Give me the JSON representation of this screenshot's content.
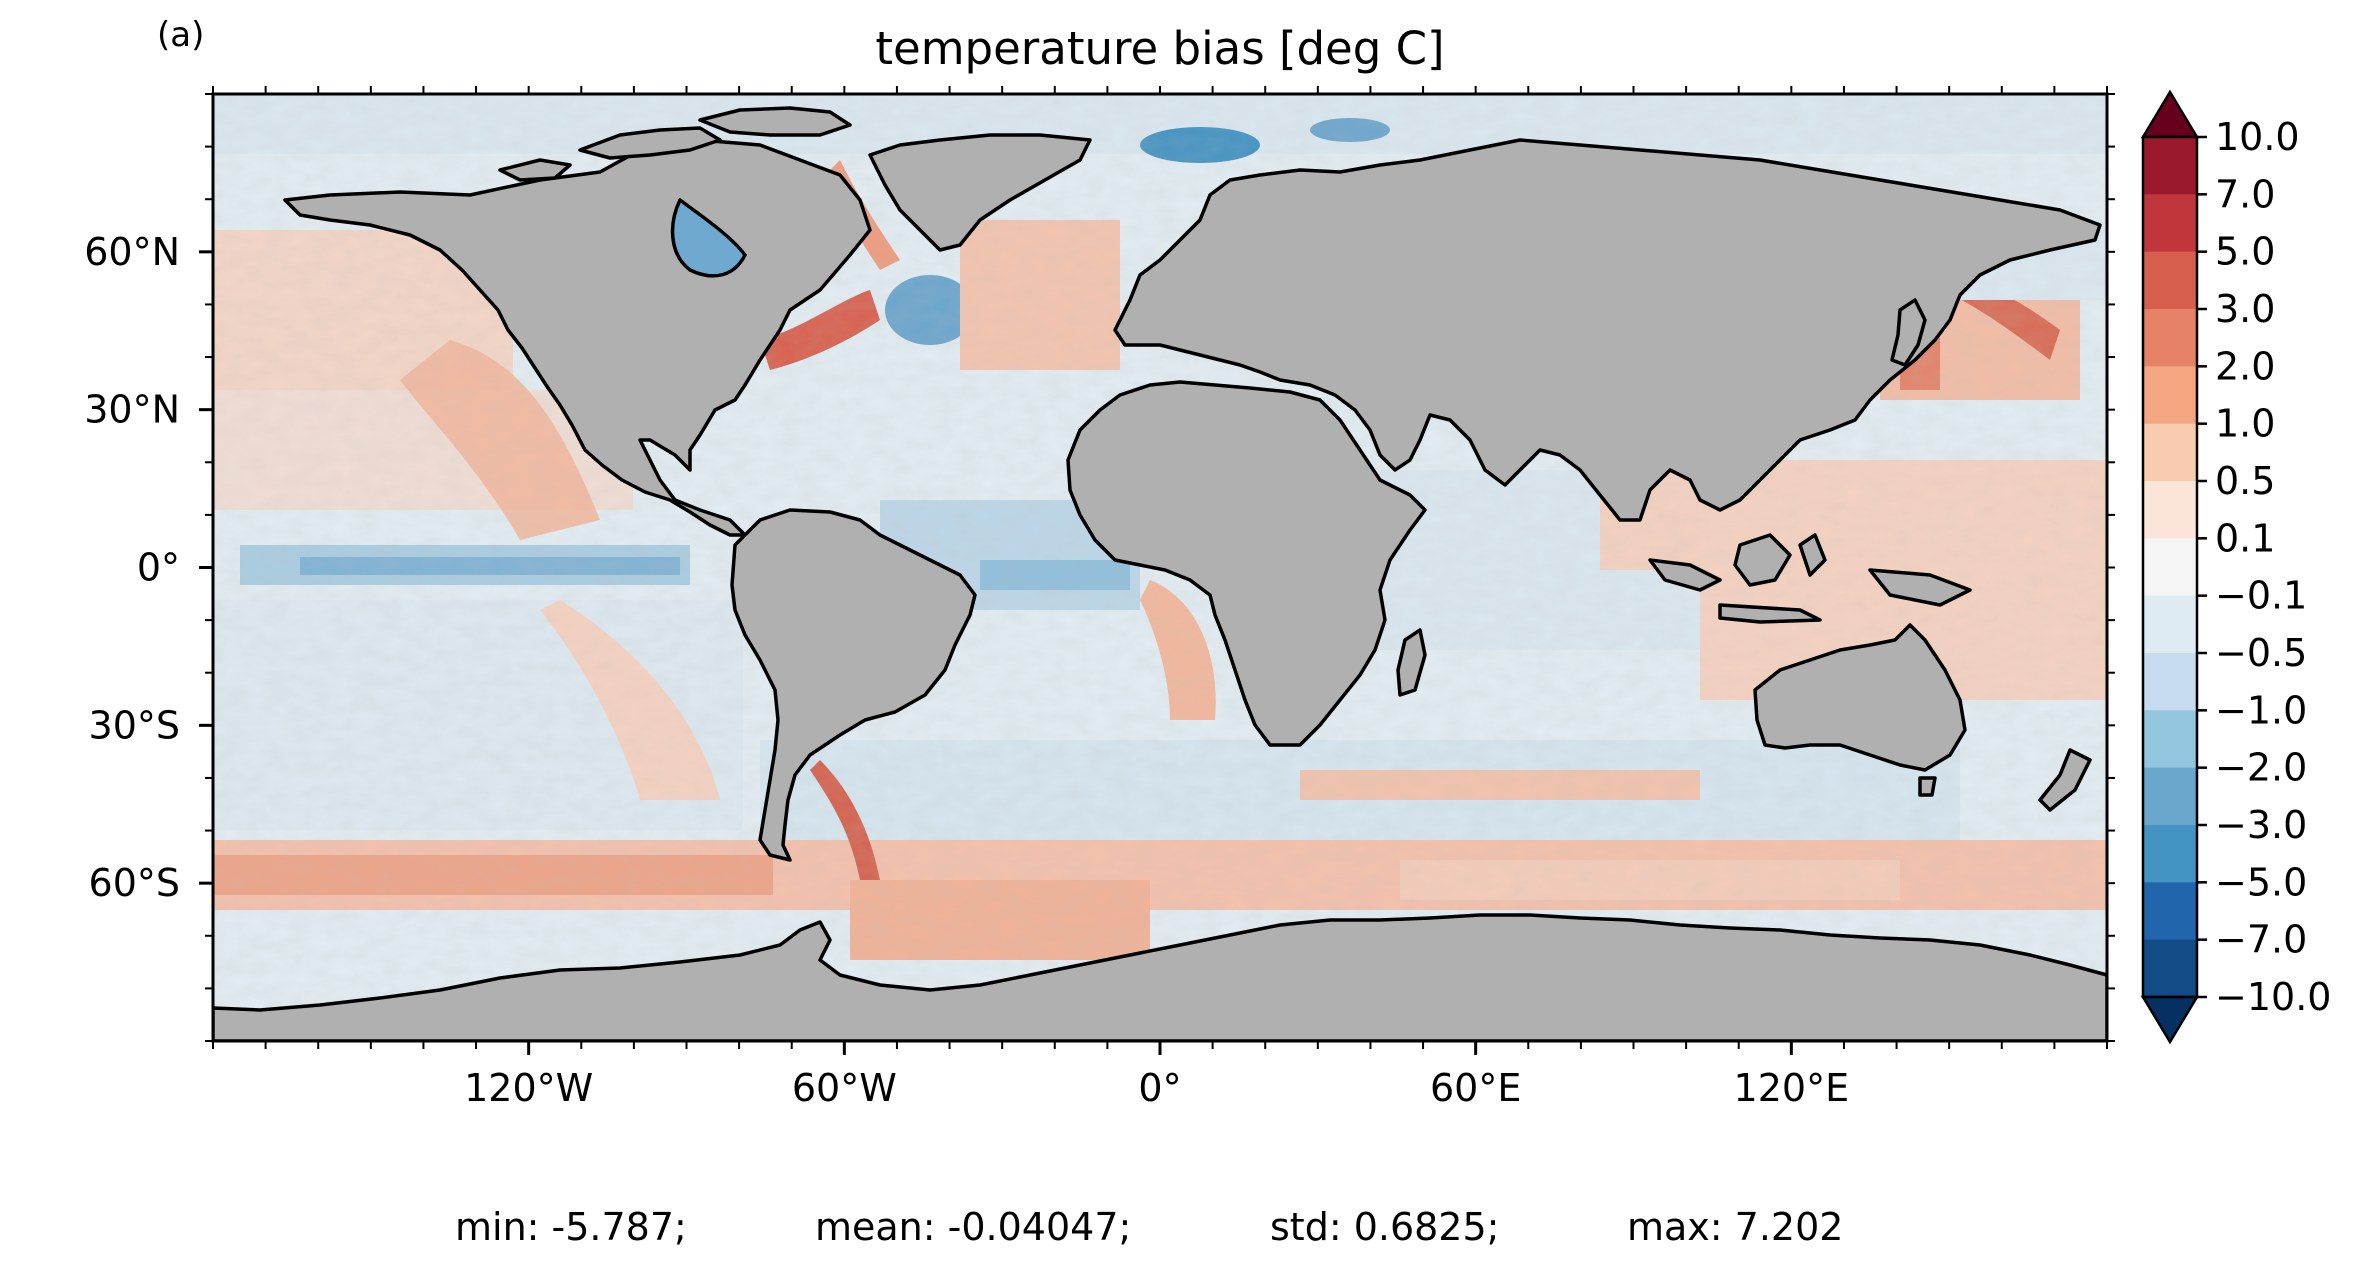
{
  "panel_label": "(a)",
  "title": "temperature bias [deg C]",
  "map": {
    "projection": "PlateCarree",
    "lon_range": [
      -180,
      180
    ],
    "lat_range": [
      -90,
      90
    ],
    "land_color": "#b0b0b0",
    "coastline_color": "#000000",
    "ocean_colormap": "RdBu_r",
    "x_ticks": [
      {
        "lon": -120,
        "label": "120°W"
      },
      {
        "lon": -60,
        "label": "60°W"
      },
      {
        "lon": 0,
        "label": "0°"
      },
      {
        "lon": 60,
        "label": "60°E"
      },
      {
        "lon": 120,
        "label": "120°E"
      }
    ],
    "y_ticks": [
      {
        "lat": 60,
        "label": "60°N"
      },
      {
        "lat": 30,
        "label": "30°N"
      },
      {
        "lat": 0,
        "label": "0°"
      },
      {
        "lat": -30,
        "label": "30°S"
      },
      {
        "lat": -60,
        "label": "60°S"
      }
    ]
  },
  "colorbar": {
    "extend": "both",
    "levels": [
      "10.0",
      "7.0",
      "5.0",
      "3.0",
      "2.0",
      "1.0",
      "0.5",
      "0.1",
      "−0.1",
      "−0.5",
      "−1.0",
      "−2.0",
      "−3.0",
      "−5.0",
      "−7.0",
      "−10.0"
    ],
    "colors": [
      "#67001f",
      "#9a1a2c",
      "#c0363c",
      "#d6604d",
      "#e58267",
      "#f4a582",
      "#f9cbb0",
      "#fbe5d8",
      "#f5f5f5",
      "#deebf2",
      "#c6dbef",
      "#92c5de",
      "#6ba6cd",
      "#4393c3",
      "#2166ac",
      "#124b86",
      "#053061"
    ]
  },
  "stats": {
    "min": "min: -5.787;",
    "mean": "mean: -0.04047;",
    "std": "std: 0.6825;",
    "max": "max: 7.202"
  }
}
